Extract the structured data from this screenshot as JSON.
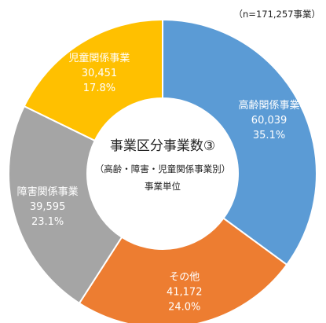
{
  "chart_data": {
    "type": "pie",
    "donut": true,
    "note": "（n=171,257事業）",
    "center": {
      "title": "事業区分事業数③",
      "subtitle": "（高齢・障害・児童関係事業別）",
      "unit": "事業単位"
    },
    "slices": [
      {
        "name": "高齢関係事業",
        "value": 60039,
        "value_label": "60,039",
        "percent_label": "35.1%",
        "color": "#5B9BD5"
      },
      {
        "name": "その他",
        "value": 41172,
        "value_label": "41,172",
        "percent_label": "24.0%",
        "color": "#ED7D31"
      },
      {
        "name": "障害関係事業",
        "value": 39595,
        "value_label": "39,595",
        "percent_label": "23.1%",
        "color": "#A5A5A5"
      },
      {
        "name": "児童関係事業",
        "value": 30451,
        "value_label": "30,451",
        "percent_label": "17.8%",
        "color": "#FFC000"
      }
    ],
    "total": 171257,
    "start": "12 o'clock, clockwise",
    "legend": "none (labels on slices)"
  }
}
